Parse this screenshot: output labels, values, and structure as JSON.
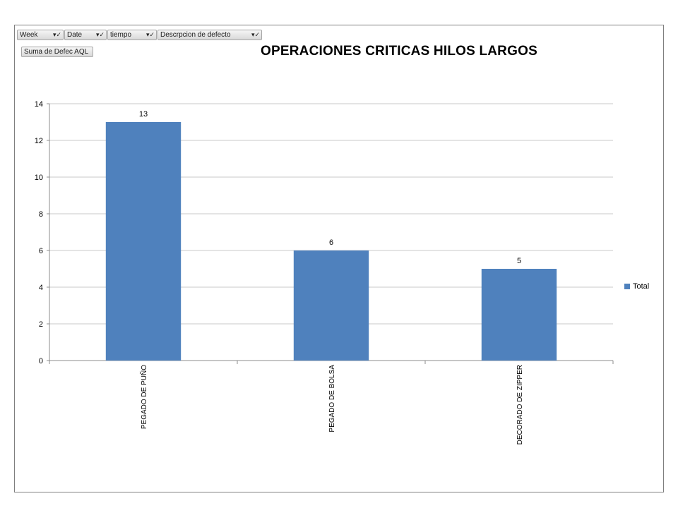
{
  "filters": [
    {
      "label": "Week"
    },
    {
      "label": "Date"
    },
    {
      "label": "tiempo"
    },
    {
      "label": "Descrpcion de defecto"
    }
  ],
  "value_field": "Suma de Defec AQL",
  "chart_data": {
    "type": "bar",
    "title": "OPERACIONES  CRITICAS HILOS LARGOS",
    "categories": [
      "PEGADO DE PUÑO",
      "PEGADO DE BOLSA",
      "DECORADO DE ZIPPER"
    ],
    "series": [
      {
        "name": "Total",
        "values": [
          13,
          6,
          5
        ],
        "color": "#4f81bd"
      }
    ],
    "ylim": [
      0,
      14
    ],
    "yticks": [
      0,
      2,
      4,
      6,
      8,
      10,
      12,
      14
    ],
    "grid": true,
    "data_labels": true,
    "legend_position": "right"
  }
}
